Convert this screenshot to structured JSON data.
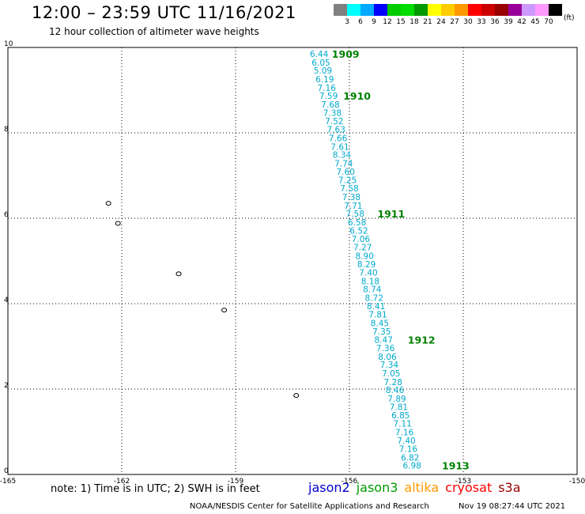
{
  "header": {
    "title": "12:00 – 23:59 UTC 11/16/2021",
    "subtitle": "12 hour collection of altimeter wave heights"
  },
  "colorbar": {
    "unit": "(ft)",
    "colors": [
      "#808080",
      "#00ffff",
      "#00aaff",
      "#0000ff",
      "#00cc00",
      "#00dd00",
      "#009900",
      "#ffff00",
      "#ffcc00",
      "#ff9900",
      "#ff0000",
      "#cc0000",
      "#990000",
      "#990099",
      "#cc99ff",
      "#ff99ff",
      "#000000"
    ],
    "labels": [
      "3",
      "6",
      "9",
      "12",
      "15",
      "18",
      "21",
      "24",
      "27",
      "30",
      "33",
      "36",
      "39",
      "42",
      "45",
      "70"
    ]
  },
  "chart_data": {
    "type": "scatter",
    "xlim": [
      -165,
      -150
    ],
    "ylim": [
      0,
      10
    ],
    "x_ticks": [
      "-165",
      "-162",
      "-159",
      "-156",
      "-153",
      "-150"
    ],
    "y_ticks": [
      "0",
      "2",
      "4",
      "6",
      "8",
      "10"
    ],
    "grid": true,
    "series": [
      {
        "name": "jason3",
        "color": "#00aacc",
        "points": [
          {
            "lon": -156.8,
            "lat": 9.85,
            "swh": "6.44"
          },
          {
            "lon": -156.75,
            "lat": 9.65,
            "swh": "6.05"
          },
          {
            "lon": -156.7,
            "lat": 9.46,
            "swh": "5.09"
          },
          {
            "lon": -156.65,
            "lat": 9.26,
            "swh": "6.19"
          },
          {
            "lon": -156.6,
            "lat": 9.06,
            "swh": "7.16"
          },
          {
            "lon": -156.55,
            "lat": 8.87,
            "swh": "7.59"
          },
          {
            "lon": -156.5,
            "lat": 8.67,
            "swh": "7.68"
          },
          {
            "lon": -156.45,
            "lat": 8.47,
            "swh": "7.38"
          },
          {
            "lon": -156.4,
            "lat": 8.28,
            "swh": "7.52"
          },
          {
            "lon": -156.35,
            "lat": 8.08,
            "swh": "7.63"
          },
          {
            "lon": -156.3,
            "lat": 7.88,
            "swh": "7.66"
          },
          {
            "lon": -156.25,
            "lat": 7.68,
            "swh": "7.61"
          },
          {
            "lon": -156.2,
            "lat": 7.49,
            "swh": "8.34"
          },
          {
            "lon": -156.15,
            "lat": 7.29,
            "swh": "7.74"
          },
          {
            "lon": -156.1,
            "lat": 7.09,
            "swh": "7.60"
          },
          {
            "lon": -156.05,
            "lat": 6.9,
            "swh": "7.25"
          },
          {
            "lon": -156.0,
            "lat": 6.7,
            "swh": "7.58"
          },
          {
            "lon": -155.95,
            "lat": 6.5,
            "swh": "7.38"
          },
          {
            "lon": -155.9,
            "lat": 6.3,
            "swh": "7.71"
          },
          {
            "lon": -155.85,
            "lat": 6.11,
            "swh": "7.58"
          },
          {
            "lon": -155.8,
            "lat": 5.91,
            "swh": "6.58"
          },
          {
            "lon": -155.75,
            "lat": 5.71,
            "swh": "6.52"
          },
          {
            "lon": -155.7,
            "lat": 5.52,
            "swh": "7.06"
          },
          {
            "lon": -155.65,
            "lat": 5.32,
            "swh": "7.27"
          },
          {
            "lon": -155.6,
            "lat": 5.12,
            "swh": "8.90"
          },
          {
            "lon": -155.55,
            "lat": 4.93,
            "swh": "8.29"
          },
          {
            "lon": -155.5,
            "lat": 4.73,
            "swh": "7.40"
          },
          {
            "lon": -155.45,
            "lat": 4.53,
            "swh": "8.18"
          },
          {
            "lon": -155.4,
            "lat": 4.34,
            "swh": "8.74"
          },
          {
            "lon": -155.35,
            "lat": 4.14,
            "swh": "8.72"
          },
          {
            "lon": -155.3,
            "lat": 3.94,
            "swh": "8.41"
          },
          {
            "lon": -155.25,
            "lat": 3.75,
            "swh": "7.81"
          },
          {
            "lon": -155.2,
            "lat": 3.55,
            "swh": "8.45"
          },
          {
            "lon": -155.15,
            "lat": 3.35,
            "swh": "7.35"
          },
          {
            "lon": -155.1,
            "lat": 3.16,
            "swh": "8.47"
          },
          {
            "lon": -155.05,
            "lat": 2.96,
            "swh": "7.36"
          },
          {
            "lon": -155.0,
            "lat": 2.76,
            "swh": "8.06"
          },
          {
            "lon": -154.95,
            "lat": 2.57,
            "swh": "7.34"
          },
          {
            "lon": -154.9,
            "lat": 2.37,
            "swh": "7.05"
          },
          {
            "lon": -154.85,
            "lat": 2.17,
            "swh": "7.28"
          },
          {
            "lon": -154.8,
            "lat": 1.98,
            "swh": "8.46"
          },
          {
            "lon": -154.75,
            "lat": 1.78,
            "swh": "7.89"
          },
          {
            "lon": -154.7,
            "lat": 1.58,
            "swh": "7.81"
          },
          {
            "lon": -154.65,
            "lat": 1.39,
            "swh": "6.85"
          },
          {
            "lon": -154.6,
            "lat": 1.19,
            "swh": "7.11"
          },
          {
            "lon": -154.55,
            "lat": 0.99,
            "swh": "7.16"
          },
          {
            "lon": -154.5,
            "lat": 0.8,
            "swh": "7.40"
          },
          {
            "lon": -154.45,
            "lat": 0.6,
            "swh": "7.16"
          },
          {
            "lon": -154.4,
            "lat": 0.4,
            "swh": "6.82"
          },
          {
            "lon": -154.35,
            "lat": 0.21,
            "swh": "6.98"
          }
        ]
      }
    ],
    "time_labels": [
      {
        "text": "1909",
        "lon": -156.1,
        "lat": 9.85
      },
      {
        "text": "1910",
        "lon": -155.8,
        "lat": 8.87
      },
      {
        "text": "1911",
        "lon": -154.9,
        "lat": 6.11
      },
      {
        "text": "1912",
        "lon": -154.1,
        "lat": 3.16
      },
      {
        "text": "1913",
        "lon": -153.2,
        "lat": 0.21
      }
    ]
  },
  "islands": [
    {
      "name": "island-a",
      "lon": -162.35,
      "lat": 6.35
    },
    {
      "name": "island-b",
      "lon": -162.1,
      "lat": 5.88
    },
    {
      "name": "island-c",
      "lon": -160.5,
      "lat": 4.7
    },
    {
      "name": "island-d",
      "lon": -159.3,
      "lat": 3.85
    },
    {
      "name": "island-e",
      "lon": -157.4,
      "lat": 1.85
    }
  ],
  "footer": {
    "note": "note:  1) Time is in UTC;  2) SWH is in feet",
    "missions": [
      {
        "label": "jason2",
        "color": "#0000cc"
      },
      {
        "label": "jason3",
        "color": "#009900"
      },
      {
        "label": "altika",
        "color": "#ff9900"
      },
      {
        "label": "cryosat",
        "color": "#ff0000"
      },
      {
        "label": "s3a",
        "color": "#990000"
      }
    ],
    "credit": "NOAA/NESDIS Center for Satellite Applications and Research",
    "timestamp": "Nov 19 08:27:44 UTC 2021"
  },
  "colors": {
    "time_label": "#008000",
    "swh_label": "#00aacc"
  }
}
